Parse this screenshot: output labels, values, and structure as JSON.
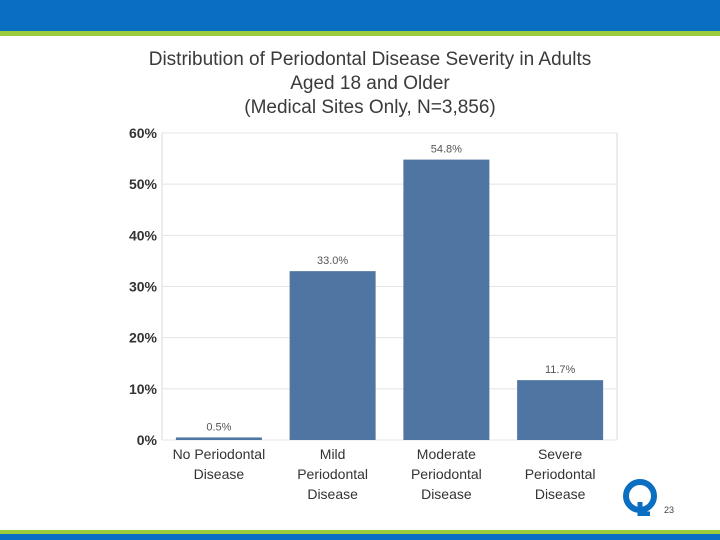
{
  "slide": {
    "page_number": "23",
    "colors": {
      "header": "#0b6fc1",
      "accent": "#9ccc3b",
      "bar": "#4f76a3"
    },
    "logo_icon": "q-logo-icon"
  },
  "title_lines": [
    "Distribution of Periodontal Disease Severity in Adults",
    "Aged 18 and Older",
    "(Medical Sites Only, N=3,856)"
  ],
  "chart_data": {
    "type": "bar",
    "title": "Distribution of Periodontal Disease Severity in Adults Aged 18 and Older (Medical Sites Only, N=3,856)",
    "categories": [
      [
        "No Periodontal",
        "Disease"
      ],
      [
        "Mild",
        "Periodontal",
        "Disease"
      ],
      [
        "Moderate",
        "Periodontal",
        "Disease"
      ],
      [
        "Severe",
        "Periodontal",
        "Disease"
      ]
    ],
    "values": [
      0.5,
      33.0,
      54.8,
      11.7
    ],
    "data_labels": [
      "0.5%",
      "33.0%",
      "54.8%",
      "11.7%"
    ],
    "yticks": [
      "0%",
      "10%",
      "20%",
      "30%",
      "40%",
      "50%",
      "60%"
    ],
    "ylim": [
      0,
      60
    ],
    "xlabel": "",
    "ylabel": "",
    "grid": true,
    "legend": "none"
  }
}
